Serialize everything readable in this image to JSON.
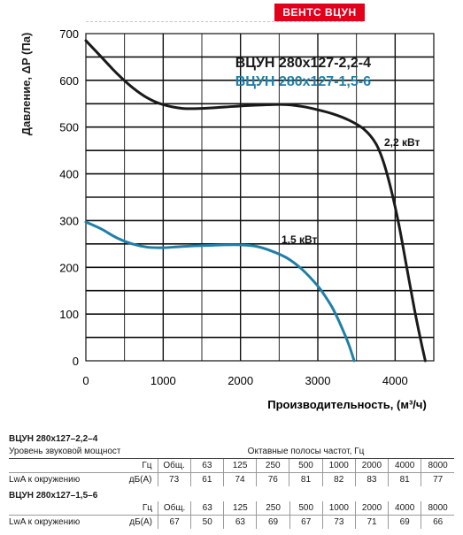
{
  "brand": {
    "label": "ВЕНТС ВЦУН",
    "color": "#e3001b"
  },
  "chart_data": {
    "type": "line",
    "xlabel": "Производительность, (м³/ч)",
    "ylabel": "Давление, ΔP (Па)",
    "xlim": [
      0,
      4500
    ],
    "ylim": [
      0,
      700
    ],
    "x_ticks": [
      0,
      1000,
      2000,
      3000,
      4000
    ],
    "y_ticks": [
      0,
      100,
      200,
      300,
      400,
      500,
      600,
      700
    ],
    "grid": true,
    "legend_position": "top-right",
    "series": [
      {
        "name": "ВЦУН 280х127-2,2-4",
        "color": "#1a1a1a",
        "power_label": "2,2 кВт",
        "points": [
          [
            0,
            685
          ],
          [
            200,
            650
          ],
          [
            400,
            615
          ],
          [
            600,
            585
          ],
          [
            800,
            562
          ],
          [
            1000,
            548
          ],
          [
            1250,
            540
          ],
          [
            1500,
            540
          ],
          [
            1800,
            543
          ],
          [
            2100,
            546
          ],
          [
            2400,
            548
          ],
          [
            2600,
            548
          ],
          [
            2800,
            544
          ],
          [
            3000,
            537
          ],
          [
            3200,
            528
          ],
          [
            3400,
            515
          ],
          [
            3600,
            495
          ],
          [
            3750,
            465
          ],
          [
            3850,
            425
          ],
          [
            3950,
            365
          ],
          [
            4050,
            290
          ],
          [
            4150,
            200
          ],
          [
            4250,
            110
          ],
          [
            4330,
            45
          ],
          [
            4390,
            0
          ]
        ]
      },
      {
        "name": "ВЦУН 280х127-1,5-6",
        "color": "#1f7fa8",
        "power_label": "1,5 кВт",
        "points": [
          [
            0,
            297
          ],
          [
            200,
            282
          ],
          [
            400,
            263
          ],
          [
            600,
            250
          ],
          [
            800,
            243
          ],
          [
            1000,
            242
          ],
          [
            1200,
            244
          ],
          [
            1400,
            246
          ],
          [
            1600,
            247
          ],
          [
            1800,
            248
          ],
          [
            2000,
            248
          ],
          [
            2200,
            245
          ],
          [
            2400,
            235
          ],
          [
            2600,
            220
          ],
          [
            2800,
            195
          ],
          [
            3000,
            160
          ],
          [
            3100,
            137
          ],
          [
            3200,
            110
          ],
          [
            3300,
            75
          ],
          [
            3400,
            35
          ],
          [
            3470,
            0
          ]
        ]
      }
    ]
  },
  "tables": [
    {
      "title": "ВЦУН 280х127–2,2–4",
      "header_left": "Уровень звуковой мощности",
      "header_right": "Октавные полосы частот, Гц",
      "hz_unit": "Гц",
      "bands": [
        "Общ.",
        "63",
        "125",
        "250",
        "500",
        "1000",
        "2000",
        "4000",
        "8000"
      ],
      "row_label": "LwA к окружению",
      "row_unit": "дБ(А)",
      "values": [
        "73",
        "61",
        "74",
        "76",
        "81",
        "82",
        "83",
        "81",
        "77"
      ]
    },
    {
      "title": "ВЦУН 280х127–1,5–6",
      "hz_unit": "Гц",
      "bands": [
        "Общ.",
        "63",
        "125",
        "250",
        "500",
        "1000",
        "2000",
        "4000",
        "8000"
      ],
      "row_label": "LwA к окружению",
      "row_unit": "дБ(А)",
      "values": [
        "67",
        "50",
        "63",
        "69",
        "67",
        "73",
        "71",
        "69",
        "66"
      ]
    }
  ]
}
